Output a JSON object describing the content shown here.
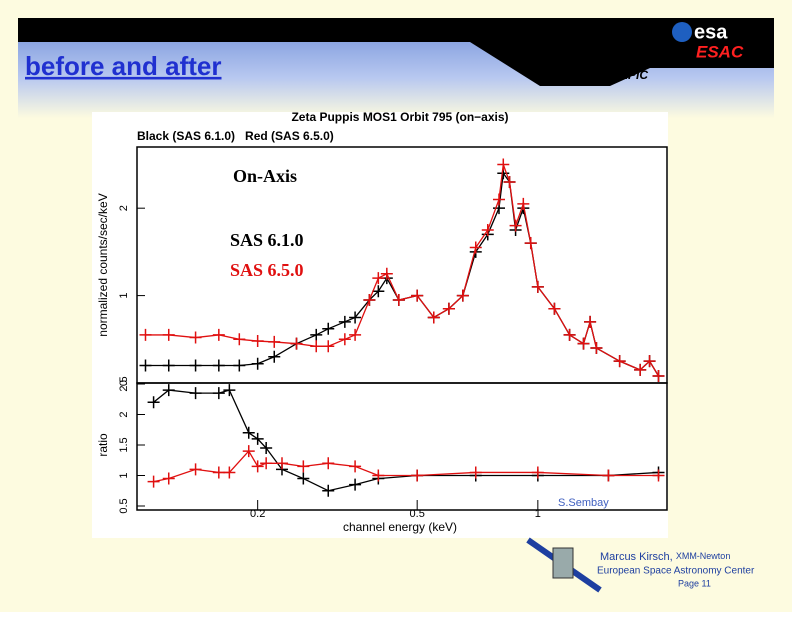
{
  "header": {
    "title": "before and after",
    "section": "EPIC",
    "logo": "esa",
    "logo_sub": "ESAC"
  },
  "footer": {
    "author": "Marcus Kirsch,",
    "mission": "XMM-Newton",
    "org": "European Space Astronomy Center",
    "page": "Page 11"
  },
  "chart_data": [
    {
      "type": "line",
      "title": "Zeta Puppis MOS1 Orbit 795 (on−axis)",
      "subtitle": "Black (SAS 6.1.0)   Red (SAS 6.5.0)",
      "y_label": "normalized counts/sec/keV",
      "xlog": true,
      "annotations": [
        "On-Axis",
        "SAS 6.1.0",
        "SAS 6.5.0"
      ],
      "x": [
        0.105,
        0.12,
        0.14,
        0.16,
        0.18,
        0.2,
        0.22,
        0.25,
        0.28,
        0.3,
        0.33,
        0.35,
        0.38,
        0.4,
        0.42,
        0.45,
        0.5,
        0.55,
        0.6,
        0.65,
        0.7,
        0.75,
        0.8,
        0.82,
        0.85,
        0.88,
        0.92,
        0.96,
        1.0,
        1.1,
        1.2,
        1.3,
        1.35,
        1.4,
        1.6,
        1.8,
        1.9,
        2.0
      ],
      "series": [
        {
          "name": "SAS 6.1.0",
          "color": "#000000",
          "values": [
            0.2,
            0.2,
            0.2,
            0.2,
            0.2,
            0.22,
            0.3,
            0.45,
            0.55,
            0.62,
            0.7,
            0.75,
            0.95,
            1.05,
            1.2,
            0.95,
            1.0,
            0.75,
            0.85,
            1.0,
            1.5,
            1.7,
            2.0,
            2.4,
            2.3,
            1.75,
            2.0,
            1.6,
            1.1,
            0.85,
            0.55,
            0.45,
            0.7,
            0.4,
            0.25,
            0.15,
            0.25,
            0.08
          ]
        },
        {
          "name": "SAS 6.5.0",
          "color": "#e01010",
          "values": [
            0.55,
            0.55,
            0.52,
            0.55,
            0.5,
            0.48,
            0.47,
            0.45,
            0.42,
            0.42,
            0.5,
            0.55,
            0.95,
            1.2,
            1.25,
            0.95,
            1.0,
            0.75,
            0.85,
            1.0,
            1.55,
            1.75,
            2.1,
            2.5,
            2.3,
            1.8,
            2.05,
            1.6,
            1.1,
            0.85,
            0.55,
            0.45,
            0.7,
            0.4,
            0.25,
            0.15,
            0.25,
            0.08
          ]
        }
      ],
      "xlim": [
        0.1,
        2.1
      ],
      "ylim": [
        0,
        2.7
      ],
      "yticks": [
        0,
        1,
        2
      ]
    },
    {
      "type": "line",
      "y_label": "ratio",
      "x_label": "channel energy (keV)",
      "xlog": true,
      "annotations": [
        "S.Sembay"
      ],
      "x": [
        0.11,
        0.12,
        0.14,
        0.16,
        0.17,
        0.19,
        0.2,
        0.21,
        0.23,
        0.26,
        0.3,
        0.35,
        0.4,
        0.5,
        0.7,
        1.0,
        1.5,
        2.0
      ],
      "series": [
        {
          "name": "SAS 6.1.0",
          "color": "#000000",
          "values": [
            2.2,
            2.4,
            2.35,
            2.35,
            2.4,
            1.7,
            1.6,
            1.45,
            1.1,
            0.95,
            0.75,
            0.85,
            0.95,
            1.0,
            1.0,
            1.0,
            1.0,
            1.05
          ]
        },
        {
          "name": "SAS 6.5.0",
          "color": "#e01010",
          "values": [
            0.9,
            0.95,
            1.1,
            1.05,
            1.05,
            1.4,
            1.15,
            1.2,
            1.2,
            1.15,
            1.2,
            1.15,
            1.0,
            1.0,
            1.05,
            1.05,
            1.0,
            1.0
          ]
        }
      ],
      "xlim": [
        0.1,
        2.1
      ],
      "ylim": [
        0.5,
        2.5
      ],
      "yticks": [
        0.5,
        1,
        1.5,
        2,
        2.5
      ],
      "xticks": [
        0.2,
        0.5,
        1
      ]
    }
  ]
}
